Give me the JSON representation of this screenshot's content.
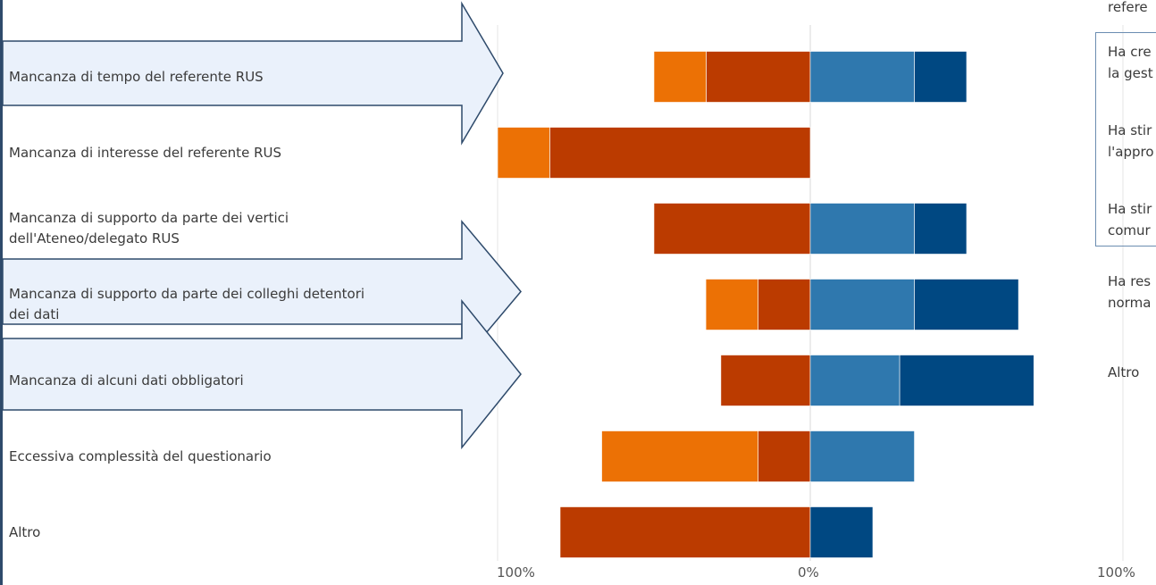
{
  "chart_data": {
    "type": "bar",
    "stacked": true,
    "diverging": true,
    "categories": [
      "Mancanza di tempo del referente RUS",
      "Mancanza di interesse del referente RUS",
      "Mancanza di supporto da parte dei vertici dell'Ateneo/delegato RUS",
      "Mancanza di supporto da parte dei colleghi detentori dei dati",
      "Mancanza di alcuni dati obbligatori",
      "Eccessiva complessità del questionario",
      "Altro"
    ],
    "category_lines": [
      [
        "Mancanza di tempo del referente RUS"
      ],
      [
        "Mancanza di interesse del referente RUS"
      ],
      [
        "Mancanza di supporto da parte dei vertici",
        "dell'Ateneo/delegato RUS"
      ],
      [
        "Mancanza di supporto da parte dei colleghi detentori",
        "dei dati"
      ],
      [
        "Mancanza di alcuni dati obbligatori"
      ],
      [
        "Eccessiva complessità del questionario"
      ],
      [
        "Altro"
      ]
    ],
    "series": [
      {
        "side": "negative",
        "color": "#bb3b00",
        "values": [
          33.3,
          83.3,
          50,
          16.7,
          28.6,
          16.7,
          80
        ]
      },
      {
        "side": "negative",
        "color": "#ec7105",
        "values": [
          16.7,
          16.7,
          0,
          16.7,
          0,
          50,
          0
        ]
      },
      {
        "side": "positive",
        "color": "#2f78ae",
        "values": [
          33.3,
          0,
          33.3,
          33.3,
          28.6,
          33.3,
          0
        ]
      },
      {
        "side": "positive",
        "color": "#004882",
        "values": [
          16.7,
          0,
          16.7,
          33.3,
          42.9,
          0,
          20
        ]
      }
    ],
    "x_ticks": [
      "100%",
      "0%",
      "100%"
    ],
    "xlim": [
      -100,
      100
    ],
    "grid": true,
    "title": "",
    "xlabel": "",
    "ylabel": ""
  },
  "right_panel": {
    "items": [
      [
        "refere"
      ],
      [
        "Ha cre",
        "la gest"
      ],
      [
        "Ha stir",
        "l'appro"
      ],
      [
        "Ha stir",
        "comur"
      ],
      [
        "Ha res",
        "norma"
      ],
      [
        "Altro"
      ]
    ]
  }
}
